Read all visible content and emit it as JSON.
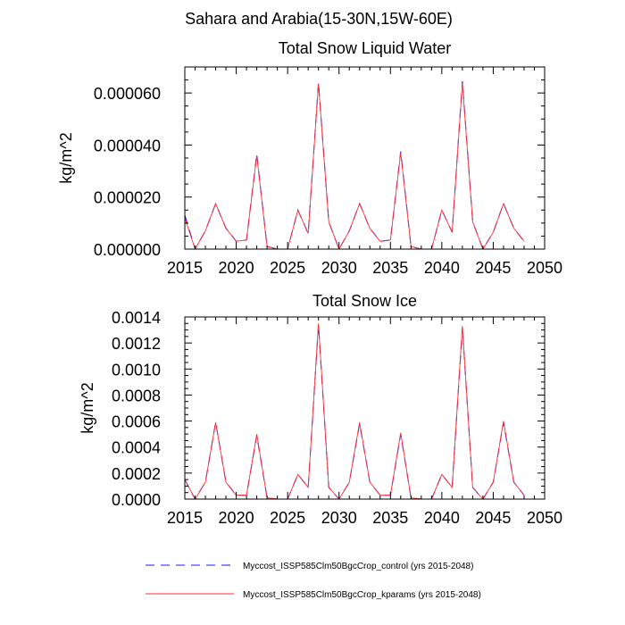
{
  "page_title": "Sahara and Arabia(15-30N,15W-60E)",
  "colors": {
    "control": "#1a1aff",
    "kparams": "#ff3030",
    "axis": "#000000"
  },
  "legend": {
    "entries": [
      {
        "label": "Myccost_ISSP585Clm50BgcCrop_control (yrs 2015-2048)",
        "style": "dashed",
        "color": "#1a1aff"
      },
      {
        "label": "Myccost_ISSP585Clm50BgcCrop_kparams (yrs 2015-2048)",
        "style": "solid",
        "color": "#ff3030"
      }
    ]
  },
  "chart_data": [
    {
      "type": "line",
      "title": "Total Snow Liquid Water",
      "xlabel": "",
      "ylabel": "kg/m^2",
      "xlim": [
        2015,
        2050
      ],
      "ylim": [
        0,
        7e-05
      ],
      "xticks": [
        2015,
        2020,
        2025,
        2030,
        2035,
        2040,
        2045,
        2050
      ],
      "xtick_labels": [
        "2015",
        "2020",
        "2025",
        "2030",
        "2035",
        "2040",
        "2045",
        "2050"
      ],
      "yticks": [
        0,
        2e-05,
        4e-05,
        6e-05
      ],
      "ytick_labels": [
        "0.000000",
        "0.000020",
        "0.000040",
        "0.000060"
      ],
      "x": [
        2015,
        2016,
        2017,
        2018,
        2019,
        2020,
        2021,
        2022,
        2023,
        2024,
        2025,
        2026,
        2027,
        2028,
        2029,
        2030,
        2031,
        2032,
        2033,
        2034,
        2035,
        2036,
        2037,
        2038,
        2039,
        2040,
        2041,
        2042,
        2043,
        2044,
        2045,
        2046,
        2047,
        2048
      ],
      "series": [
        {
          "name": "Myccost_ISSP585Clm50BgcCrop_control (yrs 2015-2048)",
          "values": [
            1.3e-05,
            0.0,
            7e-06,
            1.75e-05,
            8e-06,
            3e-06,
            3.5e-06,
            3.65e-05,
            1e-06,
            0.0,
            0.0,
            1.5e-05,
            6e-06,
            6.4e-05,
            1.05e-05,
            0.0,
            7e-06,
            1.75e-05,
            8e-06,
            3e-06,
            3.5e-06,
            3.75e-05,
            1e-06,
            0.0,
            0.0,
            1.5e-05,
            6.5e-06,
            6.45e-05,
            1.05e-05,
            0.0,
            6.5e-06,
            1.75e-05,
            8e-06,
            3e-06
          ]
        },
        {
          "name": "Myccost_ISSP585Clm50BgcCrop_kparams (yrs 2015-2048)",
          "values": [
            1.2e-05,
            0.0,
            7e-06,
            1.75e-05,
            8e-06,
            3e-06,
            3.5e-06,
            3.6e-05,
            1e-06,
            0.0,
            0.0,
            1.5e-05,
            6e-06,
            6.35e-05,
            1.05e-05,
            0.0,
            7e-06,
            1.75e-05,
            8e-06,
            3e-06,
            3.5e-06,
            3.7e-05,
            1e-06,
            0.0,
            0.0,
            1.5e-05,
            6.5e-06,
            6.4e-05,
            1.05e-05,
            0.0,
            6.5e-06,
            1.75e-05,
            8e-06,
            3e-06
          ]
        }
      ]
    },
    {
      "type": "line",
      "title": "Total Snow Ice",
      "xlabel": "",
      "ylabel": "kg/m^2",
      "xlim": [
        2015,
        2050
      ],
      "ylim": [
        0,
        0.0014
      ],
      "xticks": [
        2015,
        2020,
        2025,
        2030,
        2035,
        2040,
        2045,
        2050
      ],
      "xtick_labels": [
        "2015",
        "2020",
        "2025",
        "2030",
        "2035",
        "2040",
        "2045",
        "2050"
      ],
      "yticks": [
        0,
        0.0002,
        0.0004,
        0.0006,
        0.0008,
        0.001,
        0.0012,
        0.0014
      ],
      "ytick_labels": [
        "0.0000",
        "0.0002",
        "0.0004",
        "0.0006",
        "0.0008",
        "0.0010",
        "0.0012",
        "0.0014"
      ],
      "x": [
        2015,
        2016,
        2017,
        2018,
        2019,
        2020,
        2021,
        2022,
        2023,
        2024,
        2025,
        2026,
        2027,
        2028,
        2029,
        2030,
        2031,
        2032,
        2033,
        2034,
        2035,
        2036,
        2037,
        2038,
        2039,
        2040,
        2041,
        2042,
        2043,
        2044,
        2045,
        2046,
        2047,
        2048
      ],
      "series": [
        {
          "name": "Myccost_ISSP585Clm50BgcCrop_control (yrs 2015-2048)",
          "values": [
            0.00015,
            0.0,
            0.00013,
            0.00059,
            0.00013,
            3e-05,
            3e-05,
            0.00049,
            1e-05,
            0.0,
            0.0,
            0.00019,
            9e-05,
            0.00134,
            9e-05,
            0.0,
            0.00013,
            0.00058,
            0.00013,
            3e-05,
            3e-05,
            0.0005,
            1e-05,
            0.0,
            0.0,
            0.00019,
            9e-05,
            0.00132,
            9e-05,
            0.0,
            0.00013,
            0.00059,
            0.00013,
            3e-05
          ]
        },
        {
          "name": "Myccost_ISSP585Clm50BgcCrop_kparams (yrs 2015-2048)",
          "values": [
            0.00015,
            0.0,
            0.00013,
            0.00059,
            0.00013,
            3e-05,
            3e-05,
            0.0005,
            1e-05,
            0.0,
            0.0,
            0.00019,
            9e-05,
            0.00135,
            9e-05,
            0.0,
            0.00013,
            0.00059,
            0.00013,
            3e-05,
            3e-05,
            0.00051,
            1e-05,
            0.0,
            0.0,
            0.00019,
            9e-05,
            0.00133,
            9e-05,
            0.0,
            0.00013,
            0.0006,
            0.00013,
            3e-05
          ]
        }
      ]
    }
  ]
}
